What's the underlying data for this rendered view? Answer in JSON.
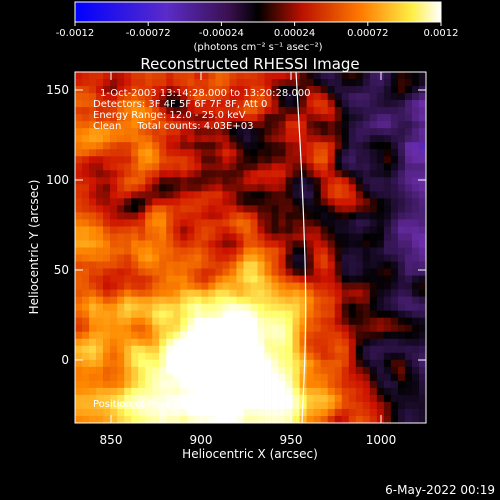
{
  "colorbar": {
    "ticks": [
      "-0.0012",
      "-0.00072",
      "-0.00024",
      "0.00024",
      "0.00072",
      "0.0012"
    ],
    "tick_values": [
      -0.0012,
      -0.00072,
      -0.00024,
      0.00024,
      0.00072,
      0.0012
    ],
    "range": [
      -0.0012,
      0.0012
    ],
    "units_label": "(photons cm⁻² s⁻¹ asec⁻²)"
  },
  "chart_data": {
    "type": "heatmap",
    "title": "Reconstructed RHESSI Image",
    "xlabel": "Heliocentric X (arcsec)",
    "ylabel": "Heliocentric Y (arcsec)",
    "xlim": [
      830,
      1025
    ],
    "ylim": [
      -35,
      160
    ],
    "xticks": [
      850,
      900,
      950,
      1000
    ],
    "yticks": [
      0,
      50,
      100,
      150
    ],
    "annotations": [
      "1-Oct-2003 13:14:28.000 to 13:20:28.000",
      "Detectors: 3F 4F 5F 6F 7F 8F, Att 0",
      "Energy Range: 12.0 - 25.0 keV",
      "Clean     Total counts: 4.03E+03"
    ],
    "peak_label": "Position of Peak = [916,-5]",
    "peak": [
      916,
      -5
    ],
    "colormap": "blue-purple-black-red-yellow-white",
    "colormap_colors": [
      "#0000ff",
      "#6a2ca8",
      "#000000",
      "#cc1100",
      "#ff8800",
      "#ffff66",
      "#ffffff"
    ]
  },
  "footer": {
    "date": "6-May-2022 00:19"
  }
}
